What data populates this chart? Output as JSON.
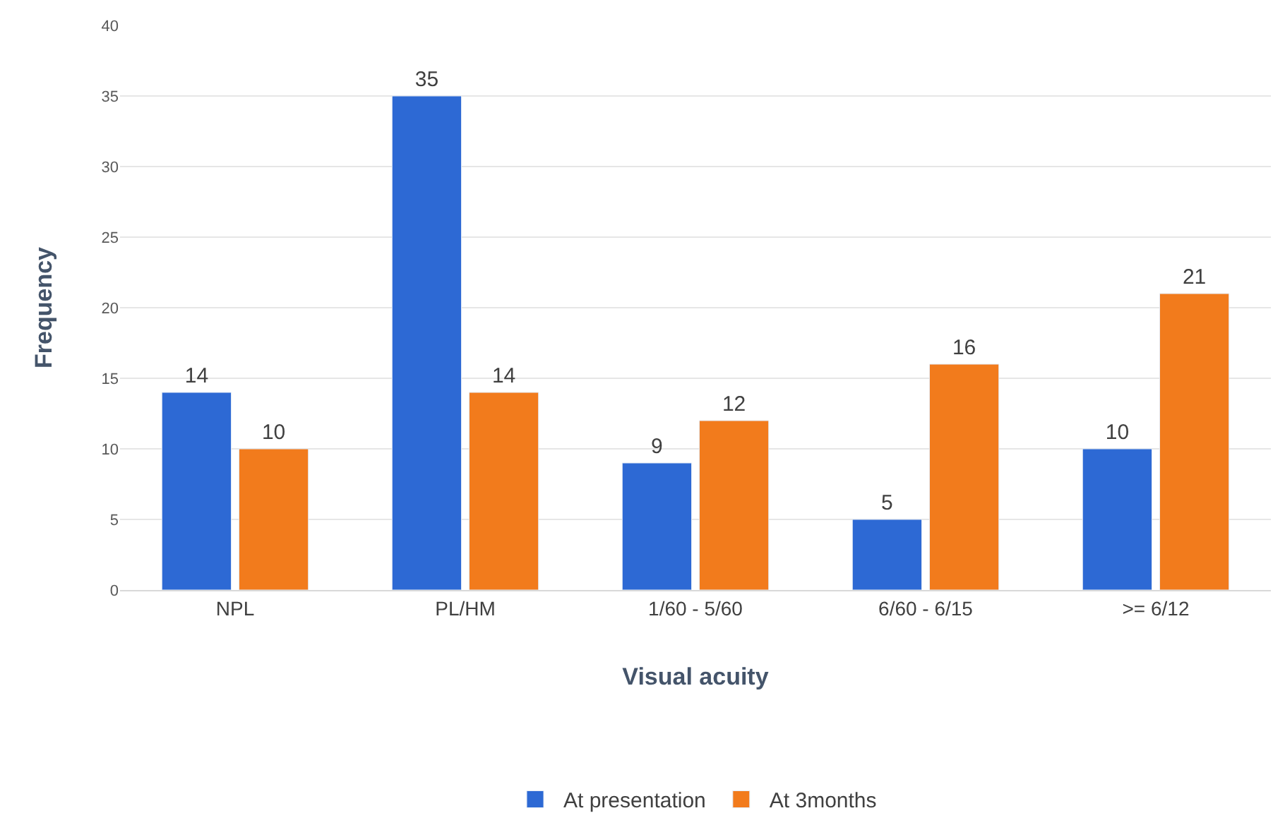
{
  "chart_data": {
    "type": "bar",
    "xlabel": "Visual acuity",
    "ylabel": "Frequency",
    "categories": [
      "NPL",
      "PL/HM",
      "1/60 - 5/60",
      "6/60 - 6/15",
      ">= 6/12"
    ],
    "series": [
      {
        "name": "At presentation",
        "color": "#2d69d4",
        "values": [
          14,
          35,
          9,
          5,
          10
        ]
      },
      {
        "name": "At 3months",
        "color": "#f27b1c",
        "values": [
          10,
          14,
          12,
          16,
          21
        ]
      }
    ],
    "ylim": [
      0,
      40
    ],
    "yticks": [
      0,
      5,
      10,
      15,
      20,
      25,
      30,
      35,
      40
    ],
    "grid": "y",
    "legend": "bottom",
    "data_labels": true
  }
}
